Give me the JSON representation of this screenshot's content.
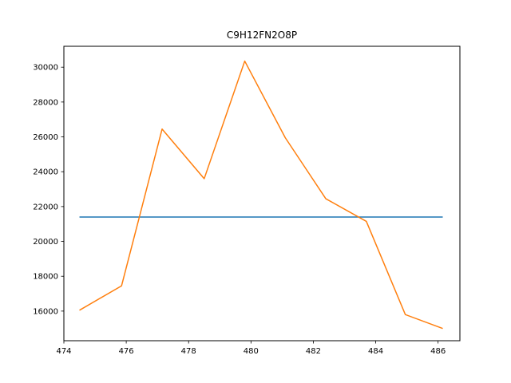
{
  "chart_data": {
    "type": "line",
    "title": "C9H12FN2O8P",
    "xlabel": "",
    "ylabel": "",
    "xlim": [
      474.0,
      486.7
    ],
    "ylim": [
      14300,
      31200
    ],
    "xticks": [
      474,
      476,
      478,
      480,
      482,
      484,
      486
    ],
    "yticks": [
      16000,
      18000,
      20000,
      22000,
      24000,
      26000,
      28000,
      30000
    ],
    "grid": false,
    "series": [
      {
        "color": "#1f77b4",
        "x": [
          474.5,
          486.15
        ],
        "y": [
          21400,
          21400
        ]
      },
      {
        "color": "#ff7f0e",
        "x": [
          474.5,
          475.85,
          477.15,
          478.5,
          479.8,
          481.1,
          482.4,
          483.7,
          484.95,
          486.15
        ],
        "y": [
          16050,
          17450,
          26450,
          23600,
          30350,
          25950,
          22450,
          21150,
          15800,
          15000
        ]
      }
    ]
  }
}
